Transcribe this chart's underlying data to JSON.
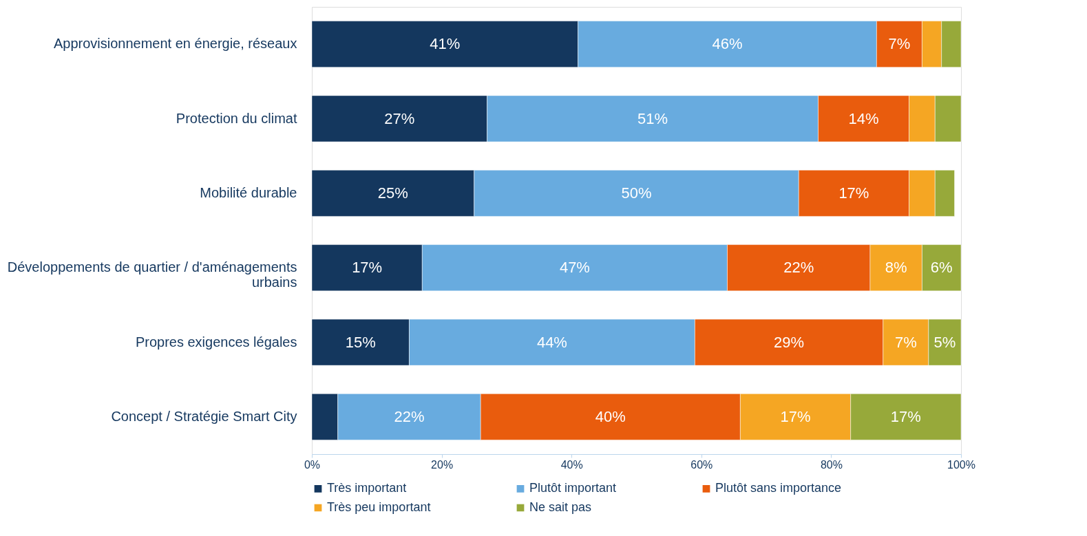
{
  "chart_data": {
    "type": "bar",
    "orientation": "horizontal",
    "stacked": true,
    "categories": [
      "Approvisionnement en énergie, réseaux",
      "Protection du climat",
      "Mobilité durable",
      "Développements de quartier / d'aménagements urbains",
      "Propres exigences légales",
      "Concept / Stratégie Smart City"
    ],
    "series": [
      {
        "name": "Très important",
        "color": "#14375e",
        "values": [
          41,
          27,
          25,
          17,
          15,
          4
        ],
        "value_labels": [
          "41%",
          "27%",
          "25%",
          "17%",
          "15%",
          null
        ]
      },
      {
        "name": "Plutôt important",
        "color": "#68abdf",
        "values": [
          46,
          51,
          50,
          47,
          44,
          22
        ],
        "value_labels": [
          "46%",
          "51%",
          "50%",
          "47%",
          "44%",
          "22%"
        ]
      },
      {
        "name": "Plutôt sans importance",
        "color": "#e95c0d",
        "values": [
          7,
          14,
          17,
          22,
          29,
          40
        ],
        "value_labels": [
          "7%",
          "14%",
          "17%",
          "22%",
          "29%",
          "40%"
        ]
      },
      {
        "name": "Très peu important",
        "color": "#f5a623",
        "values": [
          3,
          4,
          4,
          8,
          7,
          17
        ],
        "value_labels": [
          null,
          null,
          null,
          "8%",
          "7%",
          "17%"
        ]
      },
      {
        "name": "Ne sait pas",
        "color": "#97a93a",
        "values": [
          3,
          4,
          3,
          6,
          5,
          17
        ],
        "value_labels": [
          null,
          null,
          null,
          "6%",
          "5%",
          "17%"
        ]
      }
    ],
    "xlim": [
      0,
      100
    ],
    "xticks": [
      {
        "value": 0,
        "label": "0%"
      },
      {
        "value": 20,
        "label": "20%"
      },
      {
        "value": 40,
        "label": "40%"
      },
      {
        "value": 60,
        "label": "60%"
      },
      {
        "value": 80,
        "label": "80%"
      },
      {
        "value": 100,
        "label": "100%"
      }
    ],
    "grid": false,
    "legend": "bottom"
  }
}
